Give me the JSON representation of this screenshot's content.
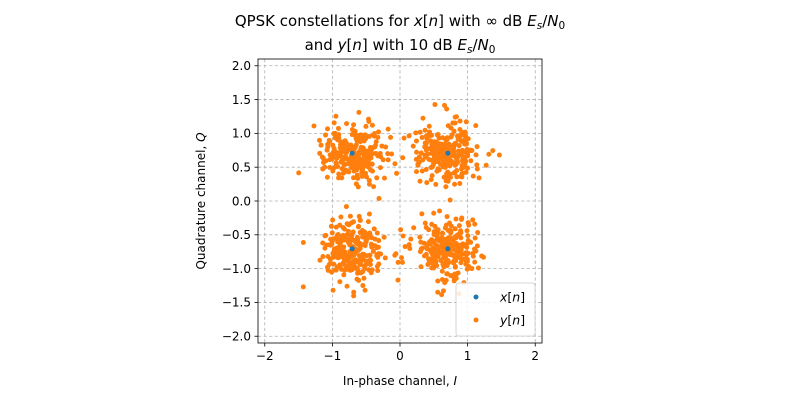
{
  "chart_data": {
    "type": "scatter",
    "title": [
      "QPSK constellations for x[n] with ∞ dB E_s/N_0",
      "and y[n] with 10 dB E_s/N_0"
    ],
    "title_display": {
      "line1": {
        "pre": "QPSK constellations for ",
        "x": "x",
        "n": "n",
        "mid": " with ∞ dB ",
        "E": "E",
        "s": "s",
        "slash": "/",
        "N": "N",
        "zero": "0"
      },
      "line2": {
        "pre": "and ",
        "y": "y",
        "n": "n",
        "mid": " with 10 dB ",
        "E": "E",
        "s": "s",
        "slash": "/",
        "N": "N",
        "zero": "0"
      }
    },
    "xlabel": {
      "text": "In-phase channel, ",
      "symbol": "I"
    },
    "ylabel": {
      "text": "Quadrature channel, ",
      "symbol": "Q"
    },
    "xlim": [
      -2.1,
      2.1
    ],
    "ylim": [
      -2.1,
      2.1
    ],
    "xticks": [
      -2,
      -1,
      0,
      1,
      2
    ],
    "yticks": [
      -2.0,
      -1.5,
      -1.0,
      -0.5,
      0.0,
      0.5,
      1.0,
      1.5,
      2.0
    ],
    "xtick_labels": [
      "−2",
      "−1",
      "0",
      "1",
      "2"
    ],
    "ytick_labels": [
      "−2.0",
      "−1.5",
      "−1.0",
      "−0.5",
      "0.0",
      "0.5",
      "1.0",
      "1.5",
      "2.0"
    ],
    "grid": true,
    "legend_position": "bottom-right",
    "series": [
      {
        "name": "x[n]",
        "legend": {
          "var": "x",
          "idx": "n"
        },
        "color": "#1f77b4",
        "points": [
          [
            0.707,
            0.707
          ],
          [
            -0.707,
            0.707
          ],
          [
            -0.707,
            -0.707
          ],
          [
            0.707,
            -0.707
          ]
        ]
      },
      {
        "name": "y[n]",
        "legend": {
          "var": "y",
          "idx": "n"
        },
        "color": "#ff7f0e",
        "noise_model": {
          "points_per_symbol": 250,
          "sigma": 0.22,
          "seed": 7
        },
        "notable_points": [
          [
            0.69,
            1.36
          ],
          [
            1.47,
            0.68
          ],
          [
            -1.43,
            -1.27
          ],
          [
            -0.99,
            -1.32
          ],
          [
            0.06,
            0.93
          ],
          [
            -0.03,
            -1.17
          ],
          [
            0.04,
            0.64
          ],
          [
            -0.06,
            -0.78
          ]
        ]
      }
    ]
  }
}
